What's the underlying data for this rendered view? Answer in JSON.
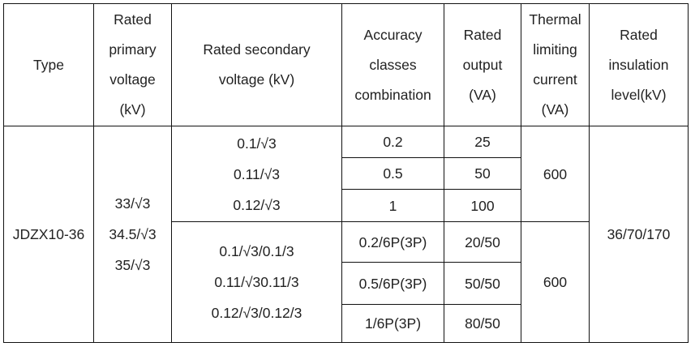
{
  "headers": {
    "type": "Type",
    "primary": [
      "Rated",
      "primary",
      "voltage",
      "(kV)"
    ],
    "secondary": [
      "Rated secondary",
      "voltage (kV)"
    ],
    "accuracy": [
      "Accuracy",
      "classes",
      "combination"
    ],
    "output": [
      "Rated",
      "output",
      "(VA)"
    ],
    "thermal": [
      "Thermal",
      "limiting",
      "current",
      "(VA)"
    ],
    "insulation": [
      "Rated",
      "insulation",
      "level(kV)"
    ]
  },
  "body": {
    "type": "JDZX10-36",
    "primary_voltages": [
      "33/√3",
      "34.5/√3",
      "35/√3"
    ],
    "group1": {
      "secondary": [
        "0.1/√3",
        "0.11/√3",
        "0.12/√3"
      ],
      "rows": [
        {
          "accuracy": "0.2",
          "output": "25"
        },
        {
          "accuracy": "0.5",
          "output": "50"
        },
        {
          "accuracy": "1",
          "output": "100"
        }
      ],
      "thermal": "600"
    },
    "group2": {
      "secondary": [
        "0.1/√3/0.1/3",
        "0.11/√30.11/3",
        "0.12/√3/0.12/3"
      ],
      "rows": [
        {
          "accuracy": "0.2/6P(3P)",
          "output": "20/50"
        },
        {
          "accuracy": "0.5/6P(3P)",
          "output": "50/50"
        },
        {
          "accuracy": "1/6P(3P)",
          "output": "80/50"
        }
      ],
      "thermal": "600"
    },
    "insulation": "36/70/170"
  }
}
